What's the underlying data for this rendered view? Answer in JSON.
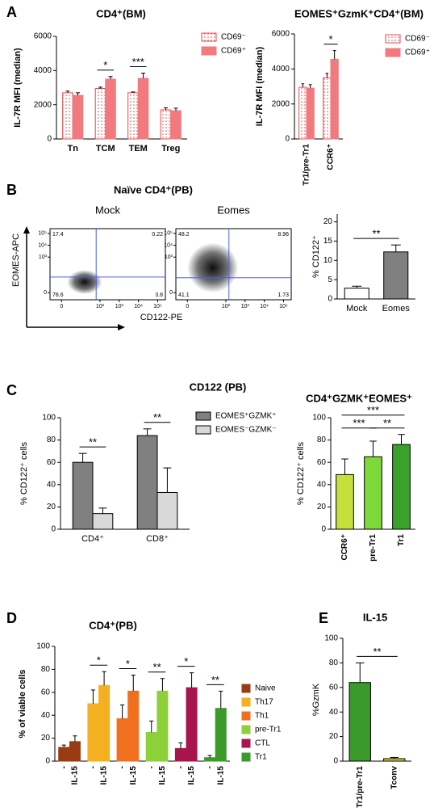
{
  "chart_data": [
    {
      "type": "bar",
      "panel": "A",
      "title": "CD4⁺(BM)",
      "ylabel": "IL-7R MFI (median)",
      "categories": [
        "Tn",
        "TCM",
        "TEM",
        "Treg"
      ],
      "series": [
        {
          "name": "CD69⁻",
          "color": "#e8474c",
          "hatch": "dots",
          "values": [
            2700,
            2950,
            2700,
            1700
          ],
          "errors": [
            100,
            80,
            50,
            120
          ]
        },
        {
          "name": "CD69⁺",
          "color": "#f07a7d",
          "values": [
            2550,
            3500,
            3550,
            1650
          ],
          "errors": [
            150,
            150,
            300,
            150
          ]
        }
      ],
      "ylim": [
        0,
        6000
      ],
      "yticks": [
        0,
        2000,
        4000,
        6000
      ],
      "significance": [
        {
          "group": 1,
          "label": "*"
        },
        {
          "group": 2,
          "label": "***"
        }
      ]
    },
    {
      "type": "bar",
      "title": "EOMES⁺GzmK⁺CD4⁺(BM)",
      "ylabel": "IL-7R MFI (median)",
      "categories": [
        "Tr1/pre-Tr1",
        "CCR6⁺"
      ],
      "series": [
        {
          "name": "CD69⁻",
          "color": "#e8474c",
          "hatch": "dots",
          "values": [
            2950,
            3500
          ],
          "errors": [
            200,
            250
          ]
        },
        {
          "name": "CD69⁺",
          "color": "#f07a7d",
          "values": [
            2900,
            4550
          ],
          "errors": [
            200,
            500
          ]
        }
      ],
      "ylim": [
        0,
        6000
      ],
      "yticks": [
        0,
        2000,
        4000,
        6000
      ],
      "significance": [
        {
          "group": 1,
          "label": "*"
        }
      ]
    },
    {
      "type": "flow",
      "panel": "B",
      "title": "Naïve CD4⁺(PB)",
      "xlabel": "CD122-PE",
      "ylabel": "EOMES-APC",
      "xlim": [
        -0.6,
        5.4
      ],
      "ylim": [
        -0.6,
        5.4
      ],
      "xticks": [
        0,
        {
          "value": 2,
          "label": "10²"
        },
        {
          "value": 3,
          "label": "10³"
        },
        {
          "value": 4,
          "label": "10⁴"
        },
        {
          "value": 5,
          "label": "10⁵"
        }
      ],
      "yticks": [
        0,
        {
          "value": 3,
          "label": "10³"
        },
        {
          "value": 4,
          "label": "10⁴"
        },
        {
          "value": 5,
          "label": "10⁵"
        }
      ],
      "plots": [
        {
          "title": "Mock",
          "quadrants": [
            17.4,
            0.22,
            78.6,
            3.8
          ]
        },
        {
          "title": "Eomes",
          "quadrants": [
            48.2,
            8.96,
            41.1,
            1.73
          ]
        }
      ]
    },
    {
      "type": "bar",
      "ylabel": "% CD122⁺",
      "categories": [
        "Mock",
        "Eomes"
      ],
      "values": [
        2.8,
        12.2
      ],
      "errors": [
        0.5,
        1.8
      ],
      "colors": [
        "#ffffff",
        "#808080"
      ],
      "outline": "#000000",
      "ylim": [
        0,
        22
      ],
      "yticks": [
        0,
        5,
        10,
        15,
        20
      ],
      "significance": [
        {
          "from": 0,
          "to": 1,
          "label": "**"
        }
      ]
    },
    {
      "type": "bar",
      "panel": "C",
      "title": "CD122 (PB)",
      "ylabel": "% CD122⁺ cells",
      "categories": [
        "CD4⁺",
        "CD8⁺"
      ],
      "outline": "#000000",
      "series": [
        {
          "name": "EOMES⁺GZMK⁺",
          "color": "#808080",
          "values": [
            60,
            84
          ],
          "errors": [
            8,
            6
          ]
        },
        {
          "name": "EOMES⁻GZMK⁻",
          "color": "#d9d9d9",
          "values": [
            14,
            33
          ],
          "errors": [
            5,
            22
          ]
        }
      ],
      "ylim": [
        0,
        100
      ],
      "yticks": [
        0,
        20,
        40,
        60,
        80,
        100
      ],
      "significance": [
        {
          "group": 0,
          "label": "**"
        },
        {
          "group": 1,
          "label": "**"
        }
      ]
    },
    {
      "type": "bar",
      "title": "CD4⁺GZMK⁺EOMES⁺",
      "ylabel": "% CD122⁺ cells",
      "categories": [
        "CCR6⁺",
        "pre-Tr1",
        "Tr1"
      ],
      "values": [
        49,
        65,
        76
      ],
      "errors": [
        14,
        14,
        9
      ],
      "colors": [
        "#c5e03a",
        "#7fd83a",
        "#3aa22a"
      ],
      "outline": "#000000",
      "ylim": [
        0,
        100
      ],
      "yticks": [
        0,
        20,
        40,
        60,
        80,
        100
      ],
      "significance": [
        {
          "from": 0,
          "to": 1,
          "label": "***"
        },
        {
          "from": 1,
          "to": 2,
          "label": "**"
        },
        {
          "from": 0,
          "to": 2,
          "label": "***"
        }
      ]
    },
    {
      "type": "pairedbar",
      "panel": "D",
      "title": "CD4⁺(PB)",
      "ylabel": "% of viable cells",
      "categories": [
        "-",
        "IL-15"
      ],
      "series": [
        {
          "name": "Naive",
          "color": "#9a3c12",
          "values": [
            12,
            17
          ],
          "errors": [
            2,
            5
          ]
        },
        {
          "name": "Th17",
          "color": "#f5b021",
          "values": [
            50,
            66
          ],
          "errors": [
            12,
            12
          ]
        },
        {
          "name": "Th1",
          "color": "#f07020",
          "values": [
            37,
            61
          ],
          "errors": [
            12,
            14
          ]
        },
        {
          "name": "pre-Tr1",
          "color": "#8ed03a",
          "values": [
            25,
            61
          ],
          "errors": [
            10,
            11
          ]
        },
        {
          "name": "CTL",
          "color": "#a8154c",
          "values": [
            11,
            64
          ],
          "errors": [
            5,
            13
          ]
        },
        {
          "name": "Tr1",
          "color": "#3a9a2a",
          "values": [
            3,
            46
          ],
          "errors": [
            2,
            15
          ]
        }
      ],
      "ylim": [
        0,
        100
      ],
      "yticks": [
        0,
        20,
        40,
        60,
        80,
        100
      ],
      "significance": [
        {
          "group": 1,
          "label": "*"
        },
        {
          "group": 2,
          "label": "*"
        },
        {
          "group": 3,
          "label": "**"
        },
        {
          "group": 4,
          "label": "*"
        },
        {
          "group": 5,
          "label": "**"
        }
      ]
    },
    {
      "type": "bar",
      "panel": "E",
      "title": "IL-15",
      "ylabel": "%GzmK",
      "categories": [
        "Tr1/pre-Tr1",
        "Tconv"
      ],
      "values": [
        64,
        2
      ],
      "errors": [
        16,
        1
      ],
      "colors": [
        "#3a9a2a",
        "#e0d030"
      ],
      "outline": "#000000",
      "ylim": [
        0,
        100
      ],
      "yticks": [
        0,
        20,
        40,
        60,
        80,
        100
      ],
      "significance": [
        {
          "from": 0,
          "to": 1,
          "label": "**"
        }
      ]
    }
  ]
}
